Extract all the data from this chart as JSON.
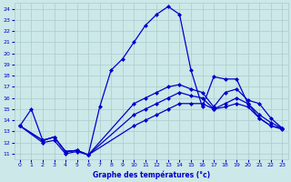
{
  "xlabel": "Graphe des températures (°c)",
  "bg_color": "#cce8e8",
  "grid_color": "#aacccc",
  "line_color": "#0000cc",
  "xlim": [
    -0.5,
    23.5
  ],
  "ylim": [
    10.5,
    24.5
  ],
  "xticks": [
    0,
    1,
    2,
    3,
    4,
    5,
    6,
    7,
    8,
    9,
    10,
    11,
    12,
    13,
    14,
    15,
    16,
    17,
    18,
    19,
    20,
    21,
    22,
    23
  ],
  "yticks": [
    11,
    12,
    13,
    14,
    15,
    16,
    17,
    18,
    19,
    20,
    21,
    22,
    23,
    24
  ],
  "line1_x": [
    0,
    1,
    2,
    3,
    4,
    5,
    6,
    7,
    8,
    9,
    10,
    11,
    12,
    13,
    14,
    15,
    16,
    17,
    18,
    19,
    20,
    21,
    22,
    23
  ],
  "line1_y": [
    13.5,
    15.0,
    12.2,
    12.5,
    11.2,
    11.3,
    10.9,
    15.2,
    18.5,
    19.5,
    21.0,
    22.5,
    23.5,
    24.2,
    23.5,
    18.5,
    15.2,
    17.9,
    17.7,
    17.7,
    15.5,
    14.2,
    13.5,
    13.3
  ],
  "line2_x": [
    0,
    2,
    3,
    4,
    5,
    6,
    10,
    11,
    12,
    13,
    14,
    15,
    16,
    17,
    18,
    19,
    20,
    21,
    22,
    23
  ],
  "line2_y": [
    13.5,
    12.2,
    12.5,
    11.2,
    11.3,
    10.9,
    15.5,
    16.0,
    16.5,
    17.0,
    17.2,
    16.8,
    16.5,
    15.2,
    16.5,
    16.8,
    15.8,
    15.5,
    14.2,
    13.3
  ],
  "line3_x": [
    0,
    2,
    3,
    4,
    5,
    6,
    10,
    11,
    12,
    13,
    14,
    15,
    16,
    17,
    18,
    19,
    20,
    21,
    22,
    23
  ],
  "line3_y": [
    13.5,
    12.2,
    12.5,
    11.2,
    11.3,
    10.9,
    14.5,
    15.0,
    15.5,
    16.0,
    16.5,
    16.2,
    16.0,
    15.0,
    15.5,
    16.0,
    15.5,
    14.5,
    13.8,
    13.3
  ],
  "line4_x": [
    0,
    2,
    3,
    4,
    5,
    6,
    10,
    11,
    12,
    13,
    14,
    15,
    16,
    17,
    18,
    19,
    20,
    21,
    22,
    23
  ],
  "line4_y": [
    13.5,
    12.0,
    12.2,
    11.0,
    11.2,
    10.9,
    13.5,
    14.0,
    14.5,
    15.0,
    15.5,
    15.5,
    15.5,
    15.0,
    15.2,
    15.5,
    15.2,
    14.2,
    13.5,
    13.2
  ]
}
